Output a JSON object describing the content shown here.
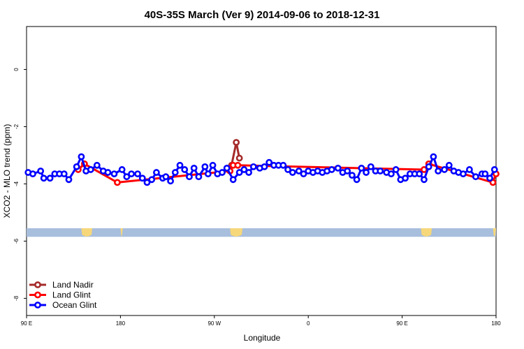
{
  "chart_data": {
    "type": "line",
    "title": "40S-35S March (Ver 9)   2014-09-06 to 2018-12-31",
    "xlabel": "Longitude",
    "ylabel": "XCO2 - MLO trend (ppm)",
    "xlim": [
      90,
      390
    ],
    "ylim": [
      -8.6,
      1.5
    ],
    "x_ticks": [
      {
        "value": 90,
        "label": "90 E"
      },
      {
        "value": 150,
        "label": "180"
      },
      {
        "value": 210,
        "label": "90 W"
      },
      {
        "value": 270,
        "label": "0"
      },
      {
        "value": 330,
        "label": "90 E"
      },
      {
        "value": 390,
        "label": "180"
      }
    ],
    "y_ticks": [
      {
        "value": 0,
        "label": "0"
      },
      {
        "value": -2,
        "label": "-2"
      },
      {
        "value": -4,
        "label": "-4"
      },
      {
        "value": -6,
        "label": "-6"
      },
      {
        "value": -8,
        "label": "-8"
      }
    ],
    "grid": false,
    "legend_position": "bottom-left",
    "map_band": {
      "y_top": -5.55,
      "y_bottom": -5.85,
      "ocean_color": "#a8bedd",
      "land_color": "#f6d77a",
      "land_spans": [
        [
          125,
          132
        ],
        [
          150,
          151.5
        ],
        [
          220,
          228
        ],
        [
          342,
          349
        ],
        [
          388,
          390
        ]
      ]
    },
    "series": [
      {
        "name": "Land Nadir",
        "color": "#a52a2a",
        "x": [
          221,
          224,
          226
        ],
        "y": [
          -3.35,
          -2.55,
          -3.1
        ]
      },
      {
        "name": "Land Glint",
        "color": "#ff0000",
        "x": [
          123,
          127,
          148,
          220,
          222,
          225,
          344,
          347,
          388,
          390
        ],
        "y": [
          -3.5,
          -3.3,
          -3.95,
          -3.55,
          -3.35,
          -3.35,
          -3.5,
          -3.3,
          -3.95,
          -3.65
        ]
      },
      {
        "name": "Ocean Glint",
        "color": "#0000ff",
        "x": [
          91,
          94,
          99,
          101,
          105,
          108,
          111,
          114,
          117,
          122,
          125,
          128,
          131,
          135,
          139,
          142,
          146,
          151,
          154,
          157,
          161,
          164,
          167,
          170,
          173,
          177,
          179,
          182,
          185,
          188,
          191,
          194,
          197,
          200,
          204,
          206,
          209,
          212,
          215,
          218,
          222,
          226,
          229,
          232,
          235,
          239,
          242,
          245,
          248,
          251,
          254,
          257,
          260,
          264,
          267,
          270,
          273,
          276,
          279,
          282,
          285,
          289,
          292,
          295,
          298,
          301,
          304,
          307,
          310,
          313,
          316,
          320,
          323,
          326,
          329,
          332,
          335,
          338,
          341,
          344,
          347,
          350,
          353,
          357,
          360,
          363,
          366,
          369,
          373,
          377,
          381,
          383,
          386,
          389
        ],
        "y": [
          -3.6,
          -3.65,
          -3.55,
          -3.8,
          -3.8,
          -3.65,
          -3.65,
          -3.65,
          -3.85,
          -3.4,
          -3.05,
          -3.55,
          -3.5,
          -3.35,
          -3.55,
          -3.6,
          -3.65,
          -3.5,
          -3.75,
          -3.65,
          -3.65,
          -3.8,
          -3.95,
          -3.85,
          -3.6,
          -3.8,
          -3.75,
          -3.9,
          -3.6,
          -3.35,
          -3.5,
          -3.75,
          -3.45,
          -3.75,
          -3.4,
          -3.65,
          -3.35,
          -3.65,
          -3.6,
          -3.45,
          -3.85,
          -3.6,
          -3.5,
          -3.6,
          -3.4,
          -3.45,
          -3.4,
          -3.25,
          -3.35,
          -3.35,
          -3.35,
          -3.5,
          -3.6,
          -3.55,
          -3.65,
          -3.55,
          -3.6,
          -3.55,
          -3.6,
          -3.55,
          -3.5,
          -3.45,
          -3.6,
          -3.55,
          -3.7,
          -3.85,
          -3.45,
          -3.6,
          -3.4,
          -3.55,
          -3.55,
          -3.6,
          -3.65,
          -3.5,
          -3.85,
          -3.8,
          -3.65,
          -3.65,
          -3.65,
          -3.85,
          -3.4,
          -3.05,
          -3.55,
          -3.5,
          -3.35,
          -3.55,
          -3.6,
          -3.65,
          -3.5,
          -3.75,
          -3.65,
          -3.65,
          -3.8,
          -3.5
        ]
      }
    ]
  }
}
